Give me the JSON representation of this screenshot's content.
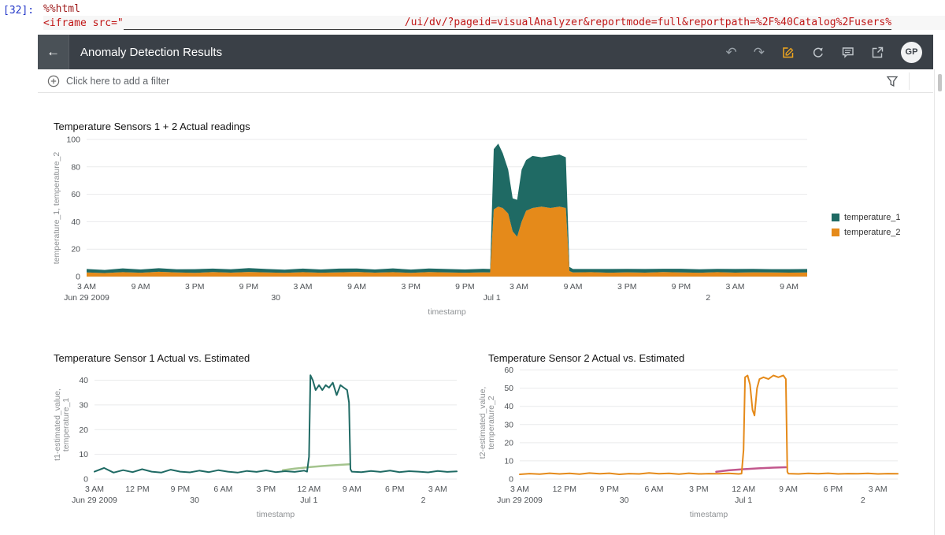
{
  "notebook": {
    "execution_count": "[32]:",
    "magic_line": "%%html",
    "code_prefix": "<iframe src=\"",
    "url_fragment": "/ui/dv/?pageid=visualAnalyzer&reportmode=full&reportpath=%2F%40Catalog%2Fusers%"
  },
  "header": {
    "title": "Anomaly Detection Results",
    "back_glyph": "←",
    "undo_glyph": "↶",
    "redo_glyph": "↷",
    "avatar_initials": "GP"
  },
  "filter_bar": {
    "add_filter_label": "Click here to add a filter"
  },
  "colors": {
    "temperature_1": "#1F6A64",
    "temperature_2": "#E58A1A",
    "t1_estimated": "#A4C48E",
    "t2_estimated": "#C2578D",
    "header_bg": "#3A4047",
    "edit_icon": "#F2A71E"
  },
  "chart_data": [
    {
      "id": "chart1",
      "type": "area-stacked",
      "title": "Temperature Sensors 1 + 2 Actual readings",
      "xlabel": "timestamp",
      "ylabel_lines": [
        "temperature_1, temperature_2"
      ],
      "xlim": [
        0,
        80
      ],
      "ylim": [
        0,
        100
      ],
      "yticks": [
        0,
        20,
        40,
        60,
        80,
        100
      ],
      "xticks": [
        {
          "v": 0,
          "label": "3 AM"
        },
        {
          "v": 6,
          "label": "9 AM"
        },
        {
          "v": 12,
          "label": "3 PM"
        },
        {
          "v": 18,
          "label": "9 PM"
        },
        {
          "v": 24,
          "label": "3 AM"
        },
        {
          "v": 30,
          "label": "9 AM"
        },
        {
          "v": 36,
          "label": "3 PM"
        },
        {
          "v": 42,
          "label": "9 PM"
        },
        {
          "v": 48,
          "label": "3 AM"
        },
        {
          "v": 54,
          "label": "9 AM"
        },
        {
          "v": 60,
          "label": "3 PM"
        },
        {
          "v": 66,
          "label": "9 PM"
        },
        {
          "v": 72,
          "label": "3 AM"
        },
        {
          "v": 78,
          "label": "9 AM"
        }
      ],
      "xdates": [
        {
          "v": 0,
          "label": "Jun 29 2009"
        },
        {
          "v": 21,
          "label": "30"
        },
        {
          "v": 45,
          "label": "Jul 1"
        },
        {
          "v": 69,
          "label": "2"
        }
      ],
      "x": [
        0,
        2,
        4,
        6,
        8,
        10,
        12,
        14,
        16,
        18,
        20,
        22,
        24,
        26,
        28,
        30,
        32,
        34,
        36,
        38,
        40,
        42,
        44,
        44.8,
        45.2,
        45.7,
        46.2,
        46.8,
        47.3,
        47.8,
        48.3,
        48.8,
        49.5,
        50.5,
        51.5,
        52.5,
        53.2,
        53.6,
        54,
        56,
        58,
        60,
        62,
        64,
        66,
        68,
        70,
        72,
        74,
        76,
        78,
        80
      ],
      "series": [
        {
          "name": "temperature_2",
          "color": "#E58A1A",
          "values": [
            3,
            2.6,
            3.2,
            2.8,
            3.5,
            3,
            2.7,
            3.3,
            2.9,
            3.4,
            3,
            2.7,
            3.2,
            2.8,
            3.1,
            3.4,
            2.9,
            3.2,
            2.7,
            3.3,
            3,
            2.8,
            3.1,
            3,
            49,
            51,
            50,
            46,
            33,
            29,
            40,
            48,
            50,
            51,
            50,
            51,
            50,
            4,
            3,
            3.2,
            2.8,
            3.1,
            2.9,
            3.3,
            3,
            2.8,
            3.2,
            2.9,
            3.1,
            3,
            2.9,
            3
          ]
        },
        {
          "name": "temperature_1",
          "color": "#1F6A64",
          "values": [
            2.5,
            2.2,
            2.8,
            2.4,
            2.6,
            2.3,
            2.7,
            2.5,
            2.4,
            2.8,
            2.5,
            2.3,
            2.6,
            2.4,
            2.7,
            2.5,
            2.3,
            2.8,
            2.4,
            2.6,
            2.5,
            2.4,
            2.6,
            2.5,
            44,
            46,
            40,
            32,
            24,
            27,
            38,
            37,
            38,
            36,
            38,
            38,
            37,
            3,
            2.5,
            2.3,
            2.7,
            2.5,
            2.6,
            2.4,
            2.7,
            2.5,
            2.4,
            2.6,
            2.5,
            2.4,
            2.5,
            2.5
          ]
        }
      ],
      "legend": [
        {
          "label": "temperature_1",
          "color": "#1F6A64"
        },
        {
          "label": "temperature_2",
          "color": "#E58A1A"
        }
      ]
    },
    {
      "id": "chart2",
      "type": "line",
      "title": "Temperature Sensor 1 Actual vs. Estimated",
      "xlabel": "timestamp",
      "ylabel_lines": [
        "t1-estimated_value,",
        "temperature_1"
      ],
      "xlim": [
        0,
        76
      ],
      "ylim": [
        0,
        44
      ],
      "yticks": [
        0,
        10,
        20,
        30,
        40
      ],
      "xticks": [
        {
          "v": 0,
          "label": "3 AM"
        },
        {
          "v": 9,
          "label": "12 PM"
        },
        {
          "v": 18,
          "label": "9 PM"
        },
        {
          "v": 27,
          "label": "6 AM"
        },
        {
          "v": 36,
          "label": "3 PM"
        },
        {
          "v": 45,
          "label": "12 AM"
        },
        {
          "v": 54,
          "label": "9 AM"
        },
        {
          "v": 63,
          "label": "6 PM"
        },
        {
          "v": 72,
          "label": "3 AM"
        }
      ],
      "xdates": [
        {
          "v": 0,
          "label": "Jun 29 2009"
        },
        {
          "v": 21,
          "label": "30"
        },
        {
          "v": 45,
          "label": "Jul 1"
        },
        {
          "v": 69,
          "label": "2"
        }
      ],
      "series": [
        {
          "name": "t1-estimated_value",
          "color": "#A4C48E",
          "width": 2.5,
          "points": [
            [
              39.5,
              3.6
            ],
            [
              42,
              4.2
            ],
            [
              45,
              4.8
            ],
            [
              48,
              5.3
            ],
            [
              51,
              5.7
            ],
            [
              53.5,
              6
            ]
          ]
        },
        {
          "name": "temperature_1",
          "color": "#1F6A64",
          "width": 2,
          "points": [
            [
              0,
              3
            ],
            [
              2,
              4.5
            ],
            [
              4,
              2.6
            ],
            [
              6,
              3.6
            ],
            [
              8,
              2.8
            ],
            [
              10,
              4
            ],
            [
              12,
              3
            ],
            [
              14,
              2.6
            ],
            [
              16,
              3.8
            ],
            [
              18,
              3
            ],
            [
              20,
              2.7
            ],
            [
              22,
              3.4
            ],
            [
              24,
              2.8
            ],
            [
              26,
              3.6
            ],
            [
              28,
              3
            ],
            [
              30,
              2.6
            ],
            [
              32,
              3.3
            ],
            [
              34,
              2.9
            ],
            [
              36,
              3.5
            ],
            [
              38,
              2.8
            ],
            [
              40,
              3.2
            ],
            [
              42,
              2.9
            ],
            [
              44,
              3.4
            ],
            [
              44.6,
              3
            ],
            [
              45,
              9
            ],
            [
              45.3,
              42
            ],
            [
              45.8,
              40
            ],
            [
              46.4,
              36
            ],
            [
              47.1,
              38
            ],
            [
              47.8,
              36
            ],
            [
              48.5,
              38
            ],
            [
              49.2,
              37
            ],
            [
              50,
              39
            ],
            [
              50.8,
              34
            ],
            [
              51.6,
              38
            ],
            [
              52.3,
              37
            ],
            [
              53,
              36
            ],
            [
              53.4,
              31
            ],
            [
              53.7,
              4
            ],
            [
              54,
              3
            ],
            [
              56,
              2.8
            ],
            [
              58,
              3.3
            ],
            [
              60,
              2.9
            ],
            [
              62,
              3.4
            ],
            [
              64,
              2.8
            ],
            [
              66,
              3.2
            ],
            [
              68,
              3
            ],
            [
              70,
              2.7
            ],
            [
              72,
              3.3
            ],
            [
              74,
              2.9
            ],
            [
              76,
              3.1
            ]
          ]
        }
      ]
    },
    {
      "id": "chart3",
      "type": "line",
      "title": "Temperature Sensor 2 Actual vs. Estimated",
      "xlabel": "timestamp",
      "ylabel_lines": [
        "t2-estimated_value,",
        "temperature_2"
      ],
      "xlim": [
        0,
        76
      ],
      "ylim": [
        0,
        62
      ],
      "yticks": [
        0,
        10,
        20,
        30,
        40,
        50,
        60
      ],
      "xticks": [
        {
          "v": 0,
          "label": "3 AM"
        },
        {
          "v": 9,
          "label": "12 PM"
        },
        {
          "v": 18,
          "label": "9 PM"
        },
        {
          "v": 27,
          "label": "6 AM"
        },
        {
          "v": 36,
          "label": "3 PM"
        },
        {
          "v": 45,
          "label": "12 AM"
        },
        {
          "v": 54,
          "label": "9 AM"
        },
        {
          "v": 63,
          "label": "6 PM"
        },
        {
          "v": 72,
          "label": "3 AM"
        }
      ],
      "xdates": [
        {
          "v": 0,
          "label": "Jun 29 2009"
        },
        {
          "v": 21,
          "label": "30"
        },
        {
          "v": 45,
          "label": "Jul 1"
        },
        {
          "v": 69,
          "label": "2"
        }
      ],
      "series": [
        {
          "name": "t2-estimated_value",
          "color": "#C2578D",
          "width": 2.5,
          "points": [
            [
              39.5,
              4
            ],
            [
              42,
              4.8
            ],
            [
              45,
              5.4
            ],
            [
              48,
              5.9
            ],
            [
              51,
              6.3
            ],
            [
              53.5,
              6.5
            ]
          ]
        },
        {
          "name": "temperature_2",
          "color": "#E58A1A",
          "width": 2,
          "points": [
            [
              0,
              2.6
            ],
            [
              2,
              3
            ],
            [
              4,
              2.7
            ],
            [
              6,
              3.2
            ],
            [
              8,
              2.8
            ],
            [
              10,
              3.1
            ],
            [
              12,
              2.7
            ],
            [
              14,
              3.3
            ],
            [
              16,
              2.9
            ],
            [
              18,
              3.2
            ],
            [
              20,
              2.6
            ],
            [
              22,
              3
            ],
            [
              24,
              2.8
            ],
            [
              26,
              3.4
            ],
            [
              28,
              2.9
            ],
            [
              30,
              3.1
            ],
            [
              32,
              2.7
            ],
            [
              34,
              3.2
            ],
            [
              36,
              2.8
            ],
            [
              38,
              3
            ],
            [
              40,
              2.9
            ],
            [
              42,
              3.1
            ],
            [
              44,
              2.8
            ],
            [
              44.6,
              3
            ],
            [
              45,
              16
            ],
            [
              45.3,
              56
            ],
            [
              45.8,
              57
            ],
            [
              46.3,
              52
            ],
            [
              46.8,
              38
            ],
            [
              47.2,
              35
            ],
            [
              47.7,
              50
            ],
            [
              48.2,
              55
            ],
            [
              49,
              56
            ],
            [
              50,
              55
            ],
            [
              51,
              57
            ],
            [
              52,
              56
            ],
            [
              53,
              57
            ],
            [
              53.5,
              55
            ],
            [
              53.8,
              4
            ],
            [
              54,
              3
            ],
            [
              56,
              2.8
            ],
            [
              58,
              3.1
            ],
            [
              60,
              2.9
            ],
            [
              62,
              3.2
            ],
            [
              64,
              2.8
            ],
            [
              66,
              3
            ],
            [
              68,
              2.9
            ],
            [
              70,
              3.1
            ],
            [
              72,
              2.8
            ],
            [
              74,
              3
            ],
            [
              76,
              2.9
            ]
          ]
        }
      ]
    }
  ]
}
